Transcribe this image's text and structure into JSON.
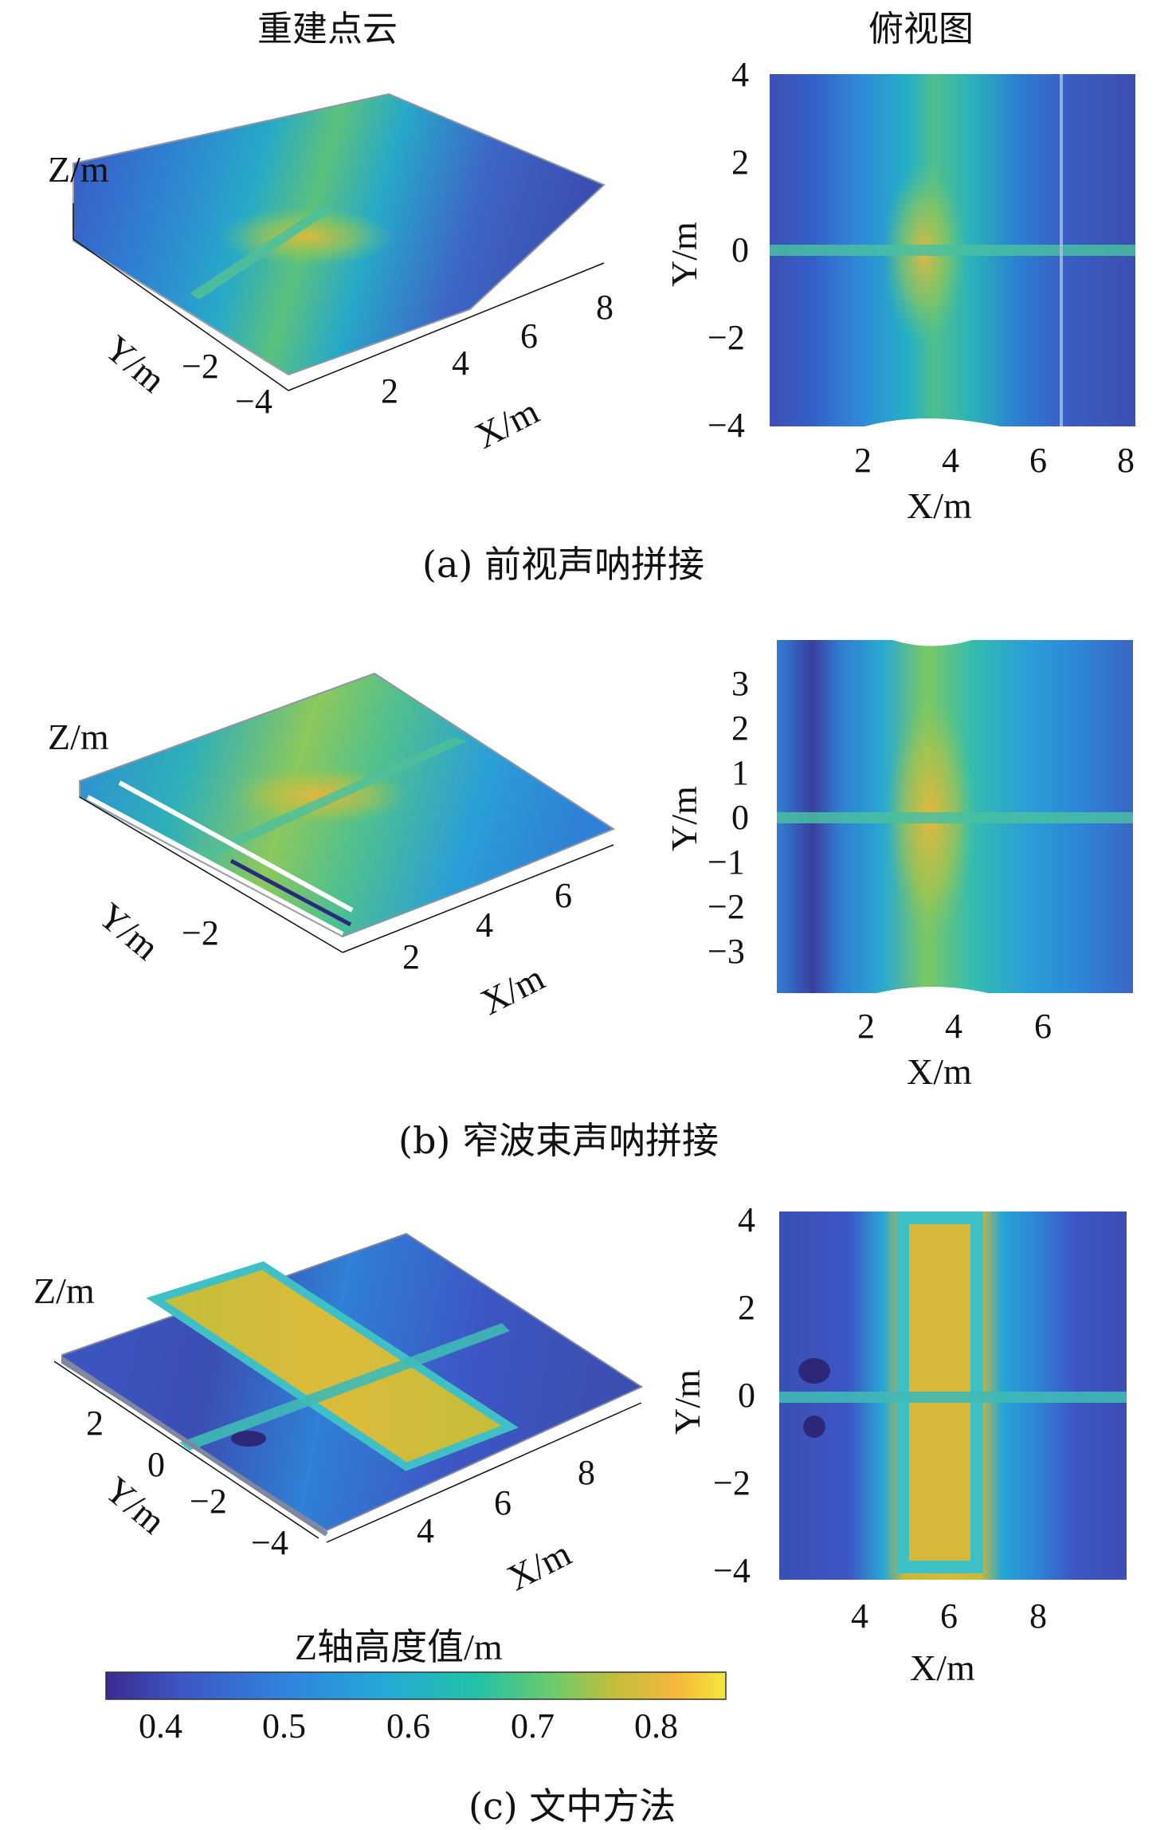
{
  "headers": {
    "left": "重建点云",
    "right": "俯视图"
  },
  "colors": {
    "colormap": [
      "#3b2a8f",
      "#3d56c4",
      "#2f86df",
      "#23aad6",
      "#22c2a6",
      "#6ccb6d",
      "#c2be3a",
      "#f5b73c",
      "#f4e83c"
    ],
    "mesh_edge": "#9aa0a8"
  },
  "chart_data": [
    {
      "id": "a-3d",
      "type": "scatter",
      "caption": "",
      "xlabel": "X/m",
      "ylabel": "Y/m",
      "zlabel": "Z/m",
      "xticks": [
        "2",
        "4",
        "6",
        "8"
      ],
      "yticks": [
        "−2",
        "−4"
      ],
      "xlim": [
        0,
        8
      ],
      "ylim": [
        -4,
        4
      ]
    },
    {
      "id": "a-top",
      "type": "heatmap",
      "xlabel": "X/m",
      "ylabel": "Y/m",
      "xticks": [
        "2",
        "4",
        "6",
        "8"
      ],
      "yticks": [
        "4",
        "2",
        "0",
        "−2",
        "−4"
      ],
      "xlim": [
        0,
        8.3
      ],
      "ylim": [
        -4,
        4
      ]
    },
    {
      "id": "b-3d",
      "type": "scatter",
      "xlabel": "X/m",
      "ylabel": "Y/m",
      "zlabel": "Z/m",
      "xticks": [
        "2",
        "4",
        "6"
      ],
      "yticks": [
        "−2"
      ],
      "xlim": [
        0,
        8
      ],
      "ylim": [
        -4,
        4
      ]
    },
    {
      "id": "b-top",
      "type": "heatmap",
      "xlabel": "X/m",
      "ylabel": "Y/m",
      "xticks": [
        "2",
        "4",
        "6"
      ],
      "yticks": [
        "3",
        "2",
        "1",
        "0",
        "−1",
        "−2",
        "−3"
      ],
      "xlim": [
        0,
        8
      ],
      "ylim": [
        -4,
        4
      ]
    },
    {
      "id": "c-3d",
      "type": "scatter",
      "xlabel": "X/m",
      "ylabel": "Y/m",
      "zlabel": "Z/m",
      "xticks": [
        "4",
        "6",
        "8"
      ],
      "yticks": [
        "2",
        "0",
        "−2",
        "−4"
      ],
      "xlim": [
        2,
        10
      ],
      "ylim": [
        -4,
        4
      ]
    },
    {
      "id": "c-top",
      "type": "heatmap",
      "xlabel": "X/m",
      "ylabel": "Y/m",
      "xticks": [
        "4",
        "6",
        "8"
      ],
      "yticks": [
        "4",
        "2",
        "0",
        "−2",
        "−4"
      ],
      "xlim": [
        2,
        10
      ],
      "ylim": [
        -4,
        4
      ]
    }
  ],
  "captions": {
    "a": "(a) 前视声呐拼接",
    "b": "(b) 窄波束声呐拼接",
    "c": "(c) 文中方法"
  },
  "colorbar": {
    "title": "Z轴高度值/m",
    "ticks": [
      "0.4",
      "0.5",
      "0.6",
      "0.7",
      "0.8"
    ],
    "range": [
      0.35,
      0.85
    ]
  }
}
